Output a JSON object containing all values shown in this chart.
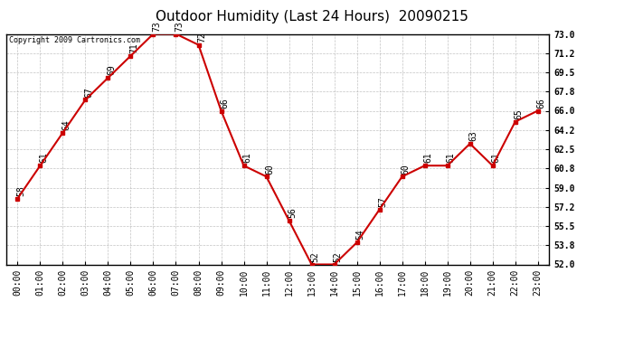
{
  "title": "Outdoor Humidity (Last 24 Hours)  20090215",
  "copyright": "Copyright 2009 Cartronics.com",
  "x_labels": [
    "00:00",
    "01:00",
    "02:00",
    "03:00",
    "04:00",
    "05:00",
    "06:00",
    "07:00",
    "08:00",
    "09:00",
    "10:00",
    "11:00",
    "12:00",
    "13:00",
    "14:00",
    "15:00",
    "16:00",
    "17:00",
    "18:00",
    "19:00",
    "20:00",
    "21:00",
    "22:00",
    "23:00"
  ],
  "hours": [
    0,
    1,
    2,
    3,
    4,
    5,
    6,
    7,
    8,
    9,
    10,
    11,
    12,
    13,
    14,
    15,
    16,
    17,
    18,
    19,
    20,
    21,
    22,
    23
  ],
  "values": [
    58,
    61,
    64,
    67,
    69,
    71,
    73,
    73,
    72,
    66,
    61,
    60,
    56,
    52,
    52,
    54,
    57,
    60,
    61,
    61,
    63,
    61,
    65,
    66
  ],
  "ylim": [
    52.0,
    73.0
  ],
  "yticks": [
    52.0,
    53.8,
    55.5,
    57.2,
    59.0,
    60.8,
    62.5,
    64.2,
    66.0,
    67.8,
    69.5,
    71.2,
    73.0
  ],
  "ytick_labels": [
    "52.0",
    "53.8",
    "55.5",
    "57.2",
    "59.0",
    "60.8",
    "62.5",
    "64.2",
    "66.0",
    "67.8",
    "69.5",
    "71.2",
    "73.0"
  ],
  "line_color": "#cc0000",
  "marker_color": "#cc0000",
  "bg_color": "#ffffff",
  "plot_bg_color": "#ffffff",
  "grid_color": "#aaaaaa",
  "title_fontsize": 11,
  "tick_fontsize": 7,
  "annotation_fontsize": 7
}
